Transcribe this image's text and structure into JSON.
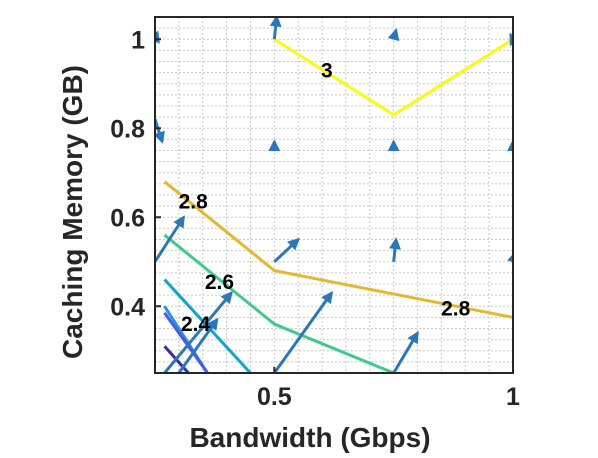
{
  "chart_data": {
    "type": "contour",
    "title": "",
    "xlabel": "Bandwidth (Gbps)",
    "ylabel": "Caching Memory (GB)",
    "xlim": [
      0.25,
      1.0
    ],
    "ylim": [
      0.25,
      1.05
    ],
    "xticks": [
      0.5,
      1.0
    ],
    "xtick_labels": [
      "0.5",
      "1"
    ],
    "yticks": [
      0.4,
      0.6,
      0.8,
      1.0
    ],
    "ytick_labels": [
      "0.4",
      "0.6",
      "0.8",
      "1"
    ],
    "grid": true,
    "contours": [
      {
        "level": 3.0,
        "label": "3",
        "color": "#f9fb0e",
        "points": [
          [
            0.5,
            1.0
          ],
          [
            0.75,
            0.83
          ],
          [
            1.0,
            1.0
          ]
        ],
        "label_at": [
          0.61,
          0.93
        ]
      },
      {
        "level": 2.8,
        "label": "2.8",
        "color": "#e5b731",
        "points": [
          [
            0.27,
            0.68
          ],
          [
            0.5,
            0.48
          ],
          [
            1.0,
            0.375
          ]
        ],
        "label_at": [
          0.33,
          0.635
        ],
        "label2": "2.8",
        "label2_at": [
          0.88,
          0.395
        ]
      },
      {
        "level": 2.6,
        "label": "2.6",
        "color": "#41c98d",
        "points": [
          [
            0.27,
            0.56
          ],
          [
            0.5,
            0.36
          ],
          [
            0.75,
            0.25
          ]
        ],
        "label_at": [
          0.385,
          0.455
        ]
      },
      {
        "level": 2.5,
        "label": "",
        "color": "#13a4c9",
        "points": [
          [
            0.27,
            0.46
          ],
          [
            0.45,
            0.25
          ]
        ]
      },
      {
        "level": 2.4,
        "label": "2.4",
        "color": "#2c8ce6",
        "points": [
          [
            0.27,
            0.4
          ],
          [
            0.36,
            0.25
          ]
        ],
        "label_at": [
          0.335,
          0.36
        ]
      },
      {
        "level": 2.3,
        "label": "",
        "color": "#4a5ddd",
        "points": [
          [
            0.27,
            0.385
          ],
          [
            0.36,
            0.25
          ]
        ]
      },
      {
        "level": 2.2,
        "label": "",
        "color": "#3a2d9e",
        "points": [
          [
            0.27,
            0.31
          ],
          [
            0.32,
            0.25
          ]
        ]
      }
    ],
    "quiver": {
      "color": "#2b77b9",
      "arrows": [
        {
          "x": 0.25,
          "y": 0.25,
          "u": 0.0,
          "v": 0.0
        },
        {
          "x": 0.25,
          "y": 0.5,
          "u": 0.06,
          "v": 0.1
        },
        {
          "x": 0.25,
          "y": 0.75,
          "u": 0.0,
          "v": 0.0
        },
        {
          "x": 0.25,
          "y": 1.0,
          "u": 0.005,
          "v": 0.015
        },
        {
          "x": 0.25,
          "y": 0.82,
          "u": 0.015,
          "v": -0.05
        },
        {
          "x": 0.5,
          "y": 0.25,
          "u": 0.12,
          "v": 0.18
        },
        {
          "x": 0.5,
          "y": 0.5,
          "u": 0.05,
          "v": 0.05
        },
        {
          "x": 0.5,
          "y": 0.75,
          "u": 0.0,
          "v": 0.02
        },
        {
          "x": 0.5,
          "y": 1.0,
          "u": 0.005,
          "v": 0.05
        },
        {
          "x": 0.75,
          "y": 0.25,
          "u": 0.05,
          "v": 0.09
        },
        {
          "x": 0.75,
          "y": 0.5,
          "u": 0.005,
          "v": 0.05
        },
        {
          "x": 0.75,
          "y": 0.75,
          "u": 0.0,
          "v": 0.02
        },
        {
          "x": 0.75,
          "y": 1.0,
          "u": 0.005,
          "v": 0.02
        },
        {
          "x": 1.0,
          "y": 0.25,
          "u": 0.025,
          "v": 0.06
        },
        {
          "x": 1.0,
          "y": 0.5,
          "u": 0.005,
          "v": 0.02
        },
        {
          "x": 1.0,
          "y": 0.75,
          "u": 0.0,
          "v": 0.02
        },
        {
          "x": 1.0,
          "y": 1.0,
          "u": -0.005,
          "v": 0.01
        },
        {
          "x": 0.27,
          "y": 0.25,
          "u": 0.14,
          "v": 0.18
        },
        {
          "x": 0.3,
          "y": 0.25,
          "u": 0.08,
          "v": 0.12
        }
      ]
    }
  }
}
